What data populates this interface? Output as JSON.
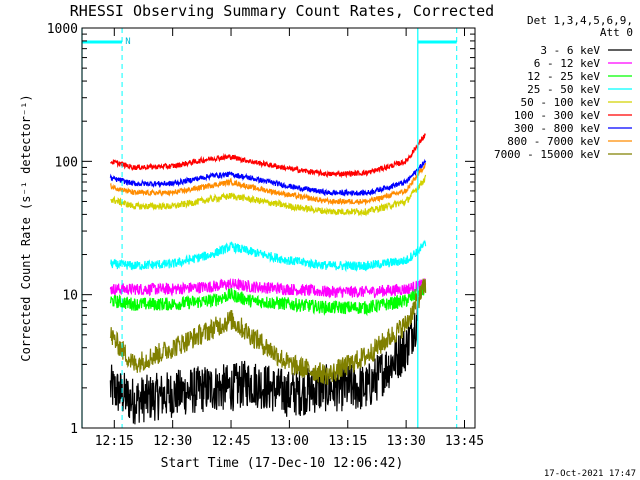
{
  "chart_data": {
    "type": "line",
    "title": "RHESSI Observing Summary Count Rates, Corrected",
    "xlabel": "Start Time (17-Dec-10 12:06:42)",
    "ylabel": "Corrected Count Rate (s⁻¹ detector⁻¹)",
    "yscale": "log",
    "ylim": [
      1,
      1000
    ],
    "xlim": [
      "12:06:42",
      "13:47:42"
    ],
    "x_ticks": [
      "12:15",
      "12:30",
      "12:45",
      "13:00",
      "13:15",
      "13:30",
      "13:45"
    ],
    "y_ticks": [
      "1",
      "10",
      "100",
      "1000"
    ],
    "legend_header": [
      "Det 1,3,4,5,6,9,",
      "Att 0"
    ],
    "legend_position": "right",
    "timestamp": "17-Oct-2021 17:47",
    "night_marker": "N",
    "series": [
      {
        "name": "3 - 6 keV",
        "color": "#000000",
        "times": [
          "12:14",
          "12:20",
          "12:30",
          "12:40",
          "12:45",
          "12:50",
          "13:00",
          "13:10",
          "13:20",
          "13:30",
          "13:33"
        ],
        "values": [
          2,
          1.6,
          1.8,
          2,
          2,
          2.2,
          1.8,
          2,
          2,
          4,
          7
        ]
      },
      {
        "name": "6 - 12 keV",
        "color": "#ff00ff",
        "times": [
          "12:14",
          "12:20",
          "12:30",
          "12:40",
          "12:45",
          "12:50",
          "13:00",
          "13:10",
          "13:20",
          "13:30",
          "13:35"
        ],
        "values": [
          11,
          11,
          11,
          11.5,
          12,
          11.5,
          11,
          10.5,
          10.5,
          11,
          12
        ]
      },
      {
        "name": "12 - 25 keV",
        "color": "#00ff00",
        "times": [
          "12:14",
          "12:20",
          "12:30",
          "12:40",
          "12:45",
          "12:50",
          "13:00",
          "13:10",
          "13:20",
          "13:30",
          "13:35"
        ],
        "values": [
          9,
          8.5,
          8.5,
          9,
          10,
          9,
          8.5,
          8,
          8,
          9,
          11
        ]
      },
      {
        "name": "25 - 50 keV",
        "color": "#00ffff",
        "times": [
          "12:14",
          "12:20",
          "12:30",
          "12:40",
          "12:45",
          "12:50",
          "13:00",
          "13:10",
          "13:20",
          "13:30",
          "13:35"
        ],
        "values": [
          17,
          16.5,
          17,
          20,
          23,
          21,
          18,
          16.5,
          16.5,
          18,
          24
        ]
      },
      {
        "name": "50 - 100 keV",
        "color": "#d2d200",
        "times": [
          "12:14",
          "12:20",
          "12:30",
          "12:40",
          "12:45",
          "12:50",
          "13:00",
          "13:10",
          "13:20",
          "13:30",
          "13:35"
        ],
        "values": [
          52,
          46,
          46,
          52,
          55,
          52,
          46,
          42,
          42,
          50,
          75
        ]
      },
      {
        "name": "100 - 300 keV",
        "color": "#ff0000",
        "times": [
          "12:14",
          "12:20",
          "12:30",
          "12:40",
          "12:45",
          "12:50",
          "13:00",
          "13:10",
          "13:20",
          "13:30",
          "13:35"
        ],
        "values": [
          100,
          90,
          92,
          105,
          108,
          100,
          88,
          80,
          82,
          100,
          160
        ]
      },
      {
        "name": "300 - 800 keV",
        "color": "#0000ff",
        "times": [
          "12:14",
          "12:20",
          "12:30",
          "12:40",
          "12:45",
          "12:50",
          "13:00",
          "13:10",
          "13:20",
          "13:30",
          "13:35"
        ],
        "values": [
          75,
          68,
          68,
          78,
          80,
          75,
          65,
          58,
          58,
          70,
          100
        ]
      },
      {
        "name": "800 - 7000 keV",
        "color": "#ff8c00",
        "times": [
          "12:14",
          "12:20",
          "12:30",
          "12:40",
          "12:45",
          "12:50",
          "13:00",
          "13:10",
          "13:20",
          "13:30",
          "13:35"
        ],
        "values": [
          65,
          58,
          58,
          66,
          70,
          64,
          56,
          50,
          50,
          60,
          95
        ]
      },
      {
        "name": "7000 - 15000 keV",
        "color": "#808000",
        "times": [
          "12:14",
          "12:20",
          "12:30",
          "12:40",
          "12:45",
          "12:50",
          "13:00",
          "13:10",
          "13:20",
          "13:30",
          "13:35"
        ],
        "values": [
          5,
          3,
          4,
          5.5,
          6.5,
          5,
          3,
          2.5,
          3.5,
          6,
          12
        ]
      }
    ],
    "spacecraft_day_night_markers": {
      "color": "#00ffff",
      "solid_lines": [
        "12:06:42",
        "13:33"
      ],
      "dashed_lines": [
        "12:17",
        "13:43"
      ]
    }
  }
}
